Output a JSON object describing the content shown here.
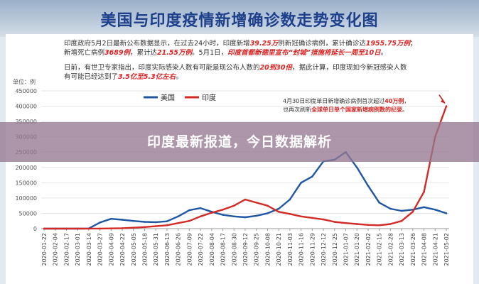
{
  "page": {
    "title": "美国与印度疫情新增确诊数走势变化图",
    "notes": [
      {
        "parts": [
          {
            "t": "印度政府5月2日最新公布数据显示，在过去24小时，印度新增"
          },
          {
            "t": "39.25万",
            "hl": true
          },
          {
            "t": "例新冠确诊病例，累计确诊达"
          },
          {
            "t": "1955.75万例",
            "hl": true
          },
          {
            "t": "；"
          }
        ]
      },
      {
        "parts": [
          {
            "t": "新增死亡病例"
          },
          {
            "t": "3689例",
            "hl": true
          },
          {
            "t": "，累计达"
          },
          {
            "t": "21.55万例",
            "hl": true
          },
          {
            "t": "。5月1日，"
          },
          {
            "t": "印度首都新德里宣布“封城”措施将延长一周至10日",
            "hl": true
          },
          {
            "t": "。"
          }
        ]
      },
      {
        "parts": [
          {
            "t": "日前，有世卫专家指出，印度实际感染人数有可能是现公布人数的"
          },
          {
            "t": "20到30倍",
            "hl": true
          },
          {
            "t": "，据此计算，印度现如今新冠感染人数"
          }
        ]
      },
      {
        "parts": [
          {
            "t": "有可能已经达到了"
          },
          {
            "t": "3.5亿至5.3亿左右",
            "hl": true
          },
          {
            "t": "。"
          }
        ]
      }
    ],
    "banner": "印度最新报道，今日数据解析"
  },
  "chart_data": {
    "type": "line",
    "ylabel": "单位：例",
    "ylim": [
      0,
      450000
    ],
    "yticks": [
      "0",
      "50000",
      "100000",
      "150000",
      "200000",
      "250000",
      "300000",
      "350000",
      "400000",
      "450000"
    ],
    "grid": true,
    "legend_position": "top-left",
    "annotation": {
      "line1_pre": "4月30日印度单日新增确诊病例首次超过",
      "line1_hl": "40万例",
      "line1_post": "，",
      "line2_pre": "也再次刷新",
      "line2_hl": "全球单日单个国家新增病例数的纪录",
      "line2_post": "。"
    },
    "x": [
      "2020-01-22",
      "2020-02-04",
      "2020-02-17",
      "2020-03-01",
      "2020-03-14",
      "2020-03-27",
      "2020-04-09",
      "2020-04-22",
      "2020-05-05",
      "2020-05-18",
      "2020-05-31",
      "2020-06-13",
      "2020-06-26",
      "2020-07-09",
      "2020-07-22",
      "2020-08-04",
      "2020-08-17",
      "2020-08-30",
      "2020-09-12",
      "2020-09-25",
      "2020-10-08",
      "2020-10-21",
      "2020-11-03",
      "2020-11-16",
      "2020-11-29",
      "2020-12-12",
      "2020-12-25",
      "2021-01-07",
      "2021-01-20",
      "2021-02-02",
      "2021-02-15",
      "2021-02-28",
      "2021-03-13",
      "2021-03-26",
      "2021-04-08",
      "2021-04-21",
      "2021-05-02"
    ],
    "series": [
      {
        "name": "美国",
        "color": "#1f57a5",
        "values": [
          0,
          0,
          0,
          0,
          500,
          20000,
          32000,
          29000,
          25000,
          22000,
          21000,
          24000,
          40000,
          60000,
          67000,
          55000,
          45000,
          40000,
          37000,
          42000,
          50000,
          65000,
          95000,
          150000,
          170000,
          220000,
          225000,
          250000,
          200000,
          140000,
          85000,
          65000,
          58000,
          62000,
          70000,
          62000,
          50000
        ]
      },
      {
        "name": "印度",
        "color": "#d42a26",
        "values": [
          0,
          0,
          0,
          0,
          0,
          200,
          800,
          1400,
          3000,
          5000,
          8000,
          11000,
          18000,
          25000,
          40000,
          52000,
          62000,
          75000,
          95000,
          85000,
          75000,
          55000,
          48000,
          40000,
          35000,
          30000,
          22000,
          18000,
          15000,
          12000,
          11000,
          15000,
          25000,
          55000,
          120000,
          300000,
          400000
        ]
      }
    ]
  }
}
